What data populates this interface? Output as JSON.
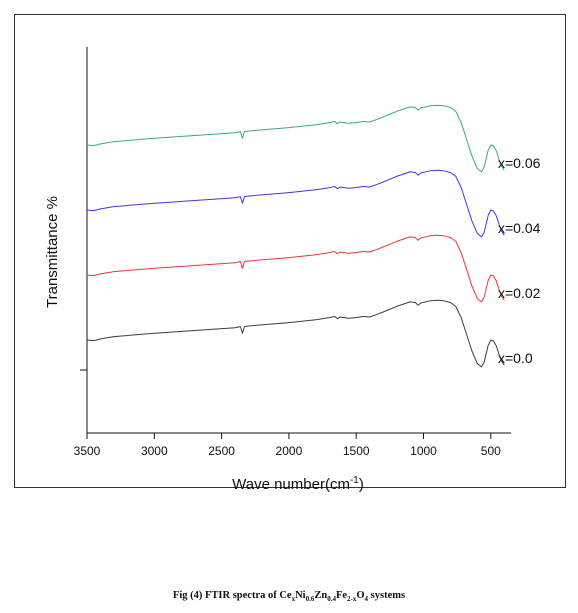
{
  "chart_data": {
    "type": "line",
    "title": "",
    "xlabel": "Wave number(cm",
    "xlabel_sup": "-1",
    "xlabel_end": ")",
    "ylabel": "Transmittance %",
    "xlim": [
      3500,
      350
    ],
    "x_reversed": true,
    "xticks": [
      3500,
      3000,
      2500,
      2000,
      1500,
      1000,
      500
    ],
    "yticks_labeled": false,
    "grid": false,
    "legend": "inline labels at right end of each curve",
    "series": [
      {
        "name": "x=0.06",
        "color": "#3aa88a",
        "offset": 3.0
      },
      {
        "name": "x=0.04",
        "color": "#3b3bdc",
        "offset": 2.0
      },
      {
        "name": "x=0.02",
        "color": "#e03b3b",
        "offset": 1.0
      },
      {
        "name": "x=0.0",
        "color": "#3c3c3c",
        "offset": 0.0
      }
    ],
    "shape": {
      "x": [
        3500,
        3450,
        3400,
        3300,
        3000,
        2700,
        2400,
        2360,
        2345,
        2330,
        2300,
        2000,
        1800,
        1700,
        1660,
        1640,
        1620,
        1560,
        1500,
        1450,
        1400,
        1340,
        1300,
        1200,
        1100,
        1060,
        1040,
        1020,
        950,
        900,
        850,
        800,
        760,
        720,
        680,
        640,
        600,
        570,
        550,
        520,
        500,
        480,
        460,
        440,
        420,
        400
      ],
      "y": [
        0.0,
        -0.01,
        0.02,
        0.06,
        0.12,
        0.17,
        0.22,
        0.24,
        0.12,
        0.24,
        0.25,
        0.31,
        0.36,
        0.4,
        0.42,
        0.38,
        0.41,
        0.39,
        0.4,
        0.42,
        0.41,
        0.46,
        0.5,
        0.6,
        0.68,
        0.67,
        0.62,
        0.66,
        0.7,
        0.71,
        0.7,
        0.67,
        0.6,
        0.4,
        0.1,
        -0.2,
        -0.42,
        -0.48,
        -0.4,
        -0.1,
        0.0,
        -0.02,
        -0.1,
        -0.25,
        -0.38,
        -0.45
      ]
    }
  },
  "caption": {
    "lead": "Fig (4) FTIR  spectra of Ce",
    "s1": "x",
    "p1": "Ni",
    "s2": "0.6",
    "p2": "Zn",
    "s3": "0.4",
    "p3": "Fe",
    "s4": "2-x",
    "p4": "O",
    "s5": "4",
    "tail": " systems"
  }
}
